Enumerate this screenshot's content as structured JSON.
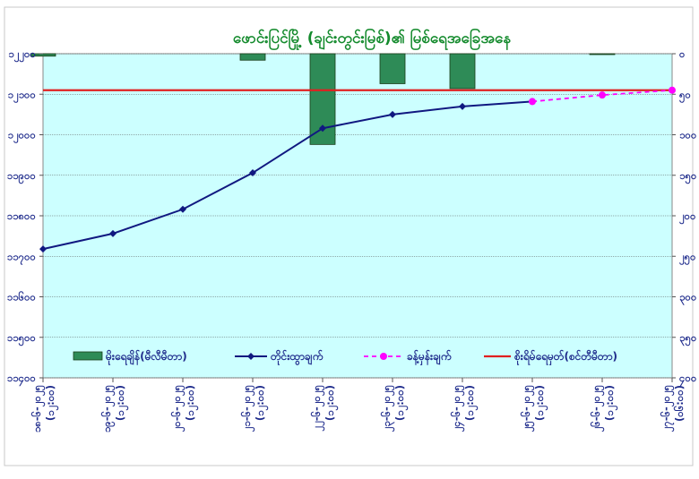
{
  "chart_data": {
    "type": "bar",
    "title": "ဖောင်းပြင်မြို့ (ချင်းတွင်းမြစ်)၏ မြစ်ရေအခြေအနေ",
    "categories": [
      "၁၈-၆-၂၀၂၅\n(၁၂:၀၀)",
      "၁၉-၆-၂၀၂၅\n(၁၂:၀၀)",
      "၂၀-၆-၂၀၂၅\n(၁၂:၀၀)",
      "၂၁-၆-၂၀၂၅\n(၁၂:၀၀)",
      "၂၂-၆-၂၀၂၅\n(၁၂:၀၀)",
      "၂၃-၆-၂၀၂၅\n(၁၂:၀၀)",
      "၂၄-၆-၂၀၂၅\n(၁၂:၀၀)",
      "၂၅-၆-၂၀၂၅\n(၁၂:၀၀)",
      "၂၆-၆-၂၀၂၅\n(၁၂:၀၀)",
      "၂၇-၆-၂၀၂၅\n(၀၆:၀၀)"
    ],
    "left_axis": {
      "ylim": [
        11400,
        12200
      ],
      "ticks": [
        12200,
        12100,
        12000,
        11900,
        11800,
        11700,
        11600,
        11500,
        11400
      ],
      "tick_labels": [
        "၁၂၂၀၀",
        "၁၂၁၀၀",
        "၁၂၀၀၀",
        "၁၁၉၀၀",
        "၁၁၈၀၀",
        "၁၁၇၀၀",
        "၁၁၆၀၀",
        "၁၁၅၀၀",
        "၁၁၄၀၀"
      ]
    },
    "right_axis": {
      "ylim": [
        0,
        400
      ],
      "ticks": [
        0,
        50,
        100,
        150,
        200,
        250,
        300,
        350,
        400
      ],
      "tick_labels": [
        "၀",
        "၅၀",
        "၁၀၀",
        "၁၅၀",
        "၂၀၀",
        "၂၅၀",
        "၃၀၀",
        "၃၅၀",
        "၄၀၀"
      ],
      "inverted": true
    },
    "series": [
      {
        "name": "မိုးရေချိန်(မီလီမီတာ)",
        "kind": "bar",
        "axis": "right",
        "color": "#2e8b57",
        "values": [
          3,
          0,
          0,
          8,
          112,
          37,
          43,
          0,
          1,
          0
        ]
      },
      {
        "name": "တိုင်းထွာချက်",
        "kind": "line",
        "axis": "left",
        "color": "#101880",
        "values": [
          11718,
          11756,
          11816,
          11906,
          12016,
          12050,
          12070,
          12082,
          null,
          null
        ]
      },
      {
        "name": "ခန့်မှန်းချက်",
        "kind": "dashed-line",
        "axis": "left",
        "color": "#ff00ff",
        "values": [
          null,
          null,
          null,
          null,
          null,
          null,
          null,
          12082,
          12098,
          12110
        ]
      },
      {
        "name": "စိုးရိမ်ရေမှတ်(စင်တီမီတာ)",
        "kind": "hline",
        "axis": "left",
        "color": "#e02020",
        "value": 12110
      }
    ],
    "grid": true,
    "legend_position": "bottom-inside",
    "plot_background": "#ccffff"
  }
}
